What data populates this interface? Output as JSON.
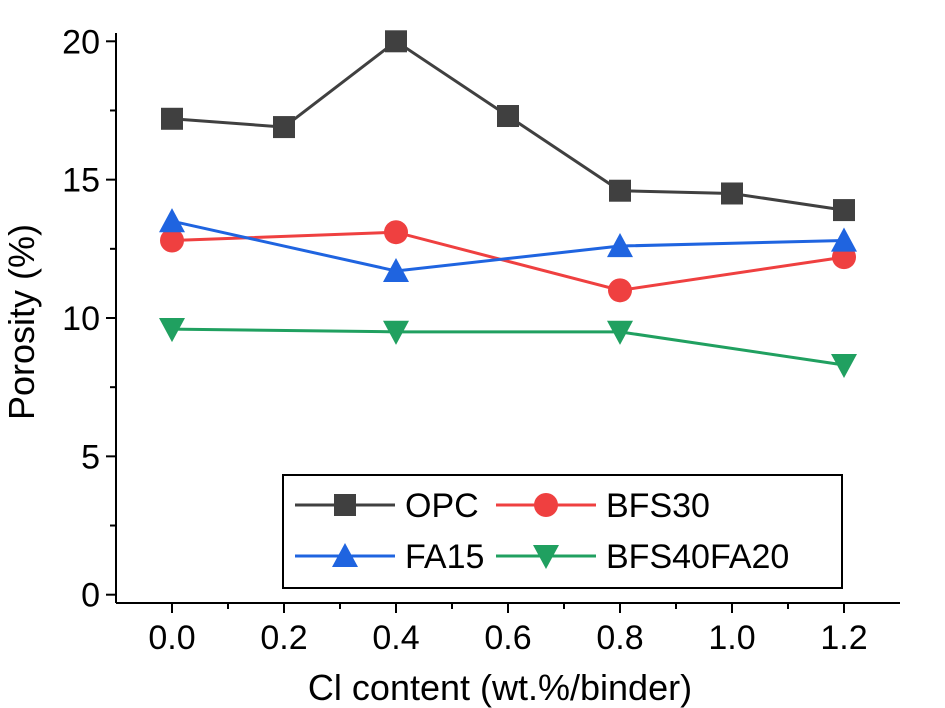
{
  "chart_data": {
    "type": "line",
    "title": "",
    "xlabel": "Cl content (wt.%/binder)",
    "ylabel": "Porosity (%)",
    "xlim": [
      -0.1,
      1.3
    ],
    "ylim": [
      -0.3,
      20.3
    ],
    "x_ticks": [
      "0.0",
      "0.2",
      "0.4",
      "0.6",
      "0.8",
      "1.0",
      "1.2"
    ],
    "y_ticks": [
      "0",
      "5",
      "10",
      "15",
      "20"
    ],
    "grid": false,
    "legend_position": "bottom-right",
    "series": [
      {
        "name": "OPC",
        "color": "#404040",
        "marker": "square",
        "x": [
          0.0,
          0.2,
          0.4,
          0.6,
          0.8,
          1.0,
          1.2
        ],
        "y": [
          17.2,
          16.9,
          20.0,
          17.3,
          14.6,
          14.5,
          13.9
        ]
      },
      {
        "name": "BFS30",
        "color": "#ef4040",
        "marker": "circle",
        "x": [
          0.0,
          0.4,
          0.8,
          1.2
        ],
        "y": [
          12.8,
          13.1,
          11.0,
          12.2
        ]
      },
      {
        "name": "FA15",
        "color": "#1f64e0",
        "marker": "triangle-up",
        "x": [
          0.0,
          0.4,
          0.8,
          1.2
        ],
        "y": [
          13.5,
          11.7,
          12.6,
          12.8
        ]
      },
      {
        "name": "BFS40FA20",
        "color": "#20a060",
        "marker": "triangle-down",
        "x": [
          0.0,
          0.4,
          0.8,
          1.2
        ],
        "y": [
          9.6,
          9.5,
          9.5,
          8.3
        ]
      }
    ]
  }
}
